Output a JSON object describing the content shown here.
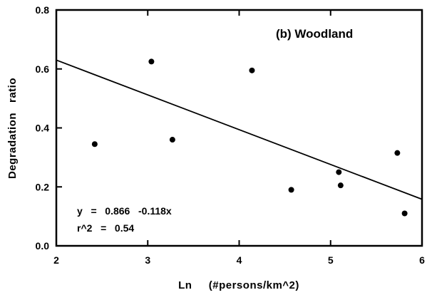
{
  "chart_data": {
    "type": "scatter",
    "title": "",
    "panel_label": "(b)  Woodland",
    "xlabel": "Ln     (#persons/km^2)",
    "ylabel": "Degradation   ratio",
    "xlim": [
      2,
      6
    ],
    "ylim": [
      0.0,
      0.8
    ],
    "x_ticks": [
      2,
      3,
      4,
      5,
      6
    ],
    "x_tick_labels": [
      "2",
      "3",
      "4",
      "5",
      "6"
    ],
    "y_ticks": [
      0.0,
      0.2,
      0.4,
      0.6,
      0.8
    ],
    "y_tick_labels": [
      "0.0",
      "0.2",
      "0.4",
      "0.6",
      "0.8"
    ],
    "grid": false,
    "points": [
      {
        "x": 2.42,
        "y": 0.345
      },
      {
        "x": 3.04,
        "y": 0.625
      },
      {
        "x": 3.27,
        "y": 0.36
      },
      {
        "x": 4.14,
        "y": 0.595
      },
      {
        "x": 4.57,
        "y": 0.19
      },
      {
        "x": 5.09,
        "y": 0.25
      },
      {
        "x": 5.11,
        "y": 0.205
      },
      {
        "x": 5.73,
        "y": 0.315
      },
      {
        "x": 5.81,
        "y": 0.11
      }
    ],
    "regression": {
      "intercept": 0.866,
      "slope": -0.118,
      "x_range": [
        2,
        6
      ]
    },
    "equation_line1": "y   =   0.866   -0.118x",
    "equation_line2": "r^2   =   0.54"
  }
}
